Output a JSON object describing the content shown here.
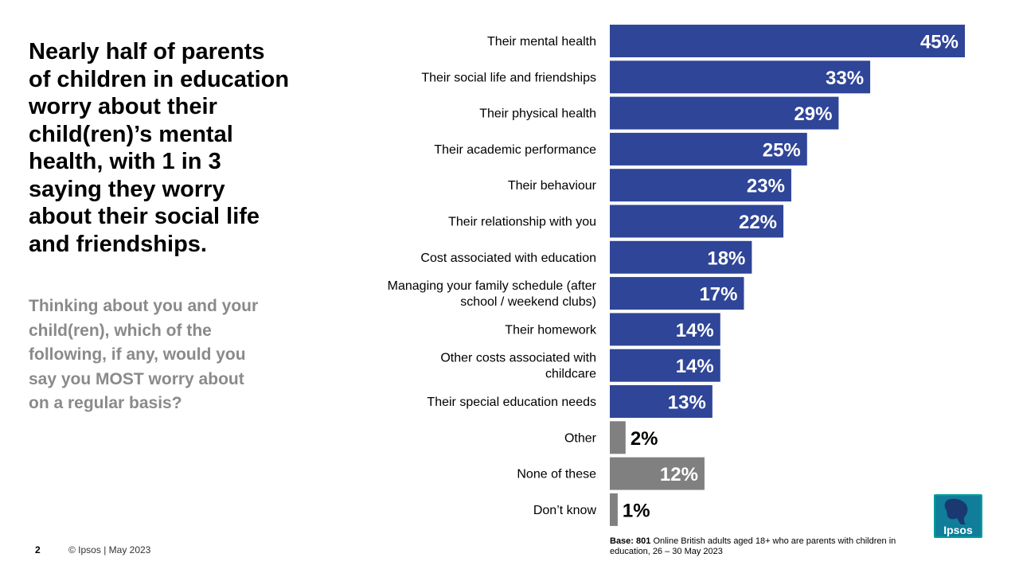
{
  "headline": "Nearly half of parents of children in education worry about their child(ren)’s mental health, with 1 in 3 saying they worry about their social life and friendships.",
  "question": "Thinking about you and your child(ren), which of the following, if any, would you say you MOST worry about on a regular basis?",
  "footer": {
    "page_number": "2",
    "copyright": "© Ipsos | May 2023",
    "base_label": "Base: 801",
    "base_text": "Online British adults aged 18+ who are parents with children in education, 26 – 30 May  2023"
  },
  "logo": {
    "text": "Ipsos",
    "color": "#009d9c"
  },
  "colors": {
    "primary_bar": "#2e4598",
    "secondary_bar": "#808080"
  },
  "chart_data": {
    "type": "bar",
    "orientation": "horizontal",
    "unit": "%",
    "xlim": [
      0,
      45
    ],
    "categories": [
      "Their mental health",
      "Their social life and friendships",
      "Their physical health",
      "Their academic performance",
      "Their behaviour",
      "Their relationship with you",
      "Cost associated with education",
      "Managing your family schedule (after school / weekend clubs)",
      "Their homework",
      "Other costs associated with childcare",
      "Their special education needs",
      "Other",
      "None of these",
      "Don’t know"
    ],
    "values": [
      45,
      33,
      29,
      25,
      23,
      22,
      18,
      17,
      14,
      14,
      13,
      2,
      12,
      1
    ],
    "data_labels": [
      "45%",
      "33%",
      "29%",
      "25%",
      "23%",
      "22%",
      "18%",
      "17%",
      "14%",
      "14%",
      "13%",
      "2%",
      "12%",
      "1%"
    ],
    "bar_colors": [
      "#2e4598",
      "#2e4598",
      "#2e4598",
      "#2e4598",
      "#2e4598",
      "#2e4598",
      "#2e4598",
      "#2e4598",
      "#2e4598",
      "#2e4598",
      "#2e4598",
      "#808080",
      "#808080",
      "#808080"
    ],
    "grid": false,
    "legend": "none"
  }
}
